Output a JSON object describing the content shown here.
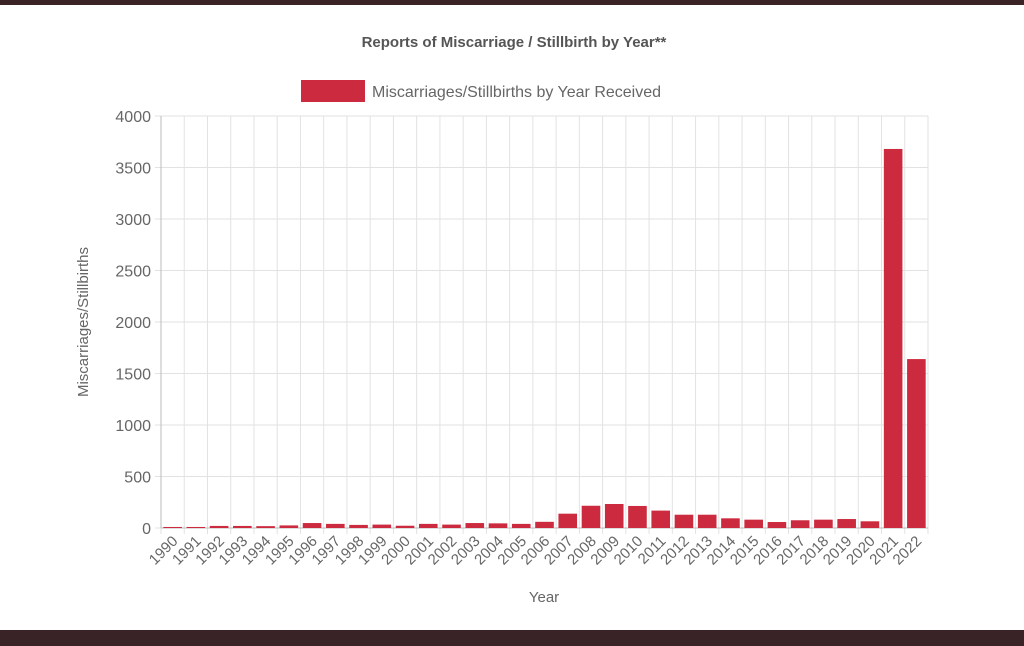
{
  "chart_data": {
    "type": "bar",
    "title": "Reports of Miscarriage / Stillbirth by Year**",
    "legend": [
      "Miscarriages/Stillbirths by Year Received"
    ],
    "legend_position": "top",
    "xlabel": "Year",
    "ylabel": "Miscarriages/Stillbirths",
    "ylim": [
      0,
      4000
    ],
    "yticks": [
      0,
      500,
      1000,
      1500,
      2000,
      2500,
      3000,
      3500,
      4000
    ],
    "grid": true,
    "color": "#cc2a3e",
    "categories": [
      "1990",
      "1991",
      "1992",
      "1993",
      "1994",
      "1995",
      "1996",
      "1997",
      "1998",
      "1999",
      "2000",
      "2001",
      "2002",
      "2003",
      "2004",
      "2005",
      "2006",
      "2007",
      "2008",
      "2009",
      "2010",
      "2011",
      "2012",
      "2013",
      "2014",
      "2015",
      "2016",
      "2017",
      "2018",
      "2019",
      "2020",
      "2021",
      "2022"
    ],
    "values": [
      10,
      10,
      20,
      20,
      18,
      25,
      48,
      40,
      30,
      33,
      22,
      40,
      33,
      48,
      45,
      40,
      60,
      139,
      216,
      233,
      214,
      169,
      129,
      129,
      94,
      81,
      58,
      75,
      81,
      87,
      65,
      3680,
      1640
    ]
  }
}
